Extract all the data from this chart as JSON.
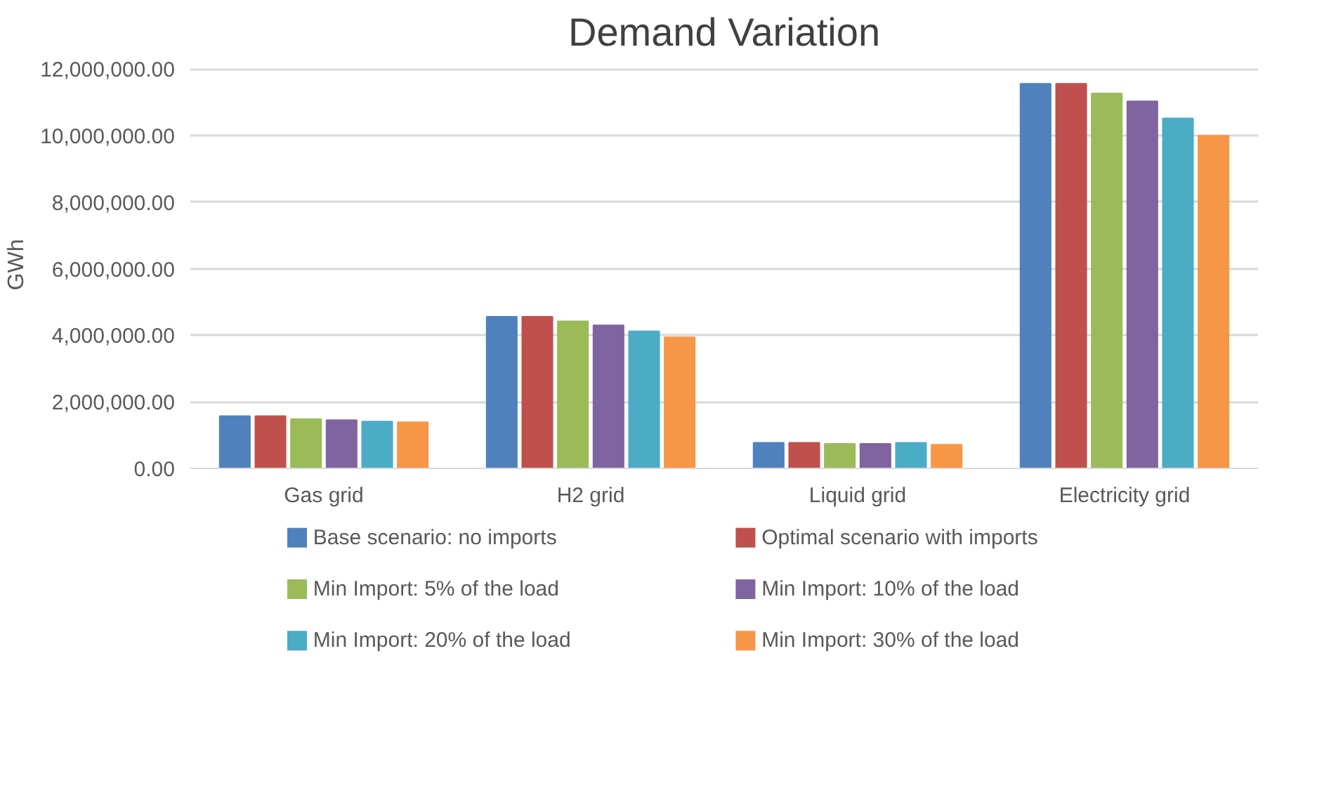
{
  "chart_data": {
    "type": "bar",
    "title": "Demand Variation",
    "ylabel": "GWh",
    "categories": [
      "Gas grid",
      "H2 grid",
      "Liquid grid",
      "Electricity grid"
    ],
    "series": [
      {
        "name": "Base scenario: no imports",
        "color": "#4f81bd",
        "values": [
          1570000,
          4560000,
          770000,
          11560000
        ]
      },
      {
        "name": "Optimal scenario with imports",
        "color": "#c0504d",
        "values": [
          1570000,
          4560000,
          770000,
          11560000
        ]
      },
      {
        "name": "Min Import: 5% of the load",
        "color": "#9bbb59",
        "values": [
          1480000,
          4420000,
          740000,
          11270000
        ]
      },
      {
        "name": "Min Import: 10% of the load",
        "color": "#8064a2",
        "values": [
          1450000,
          4300000,
          740000,
          11030000
        ]
      },
      {
        "name": "Min Import: 20% of the load",
        "color": "#4bacc6",
        "values": [
          1410000,
          4120000,
          770000,
          10520000
        ]
      },
      {
        "name": "Min Import: 30% of the load",
        "color": "#f79646",
        "values": [
          1390000,
          3940000,
          710000,
          10000000
        ]
      }
    ],
    "ylim": [
      0,
      12000000
    ],
    "yticks": [
      {
        "value": 0,
        "label": "0.00"
      },
      {
        "value": 2000000,
        "label": "2,000,000.00"
      },
      {
        "value": 4000000,
        "label": "4,000,000.00"
      },
      {
        "value": 6000000,
        "label": "6,000,000.00"
      },
      {
        "value": 8000000,
        "label": "8,000,000.00"
      },
      {
        "value": 10000000,
        "label": "10,000,000.00"
      },
      {
        "value": 12000000,
        "label": "12,000,000.00"
      }
    ],
    "grid": "y",
    "legend": "bottom"
  }
}
